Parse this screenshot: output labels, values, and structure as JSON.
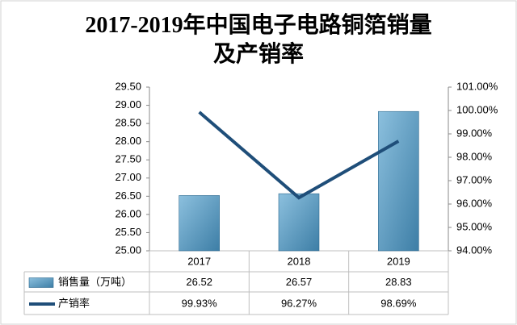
{
  "chart_data": {
    "type": "bar-line",
    "title": "2017-2019年中国电子电路铜箔销量及产销率",
    "categories": [
      "2017",
      "2018",
      "2019"
    ],
    "series": [
      {
        "name": "销售量（万吨）",
        "type": "bar",
        "color": "#4a8fb9",
        "values": [
          26.52,
          26.57,
          28.83
        ]
      },
      {
        "name": "产销率",
        "type": "line",
        "color": "#1f4e79",
        "axis": "y2",
        "values": [
          99.93,
          96.27,
          98.69
        ],
        "value_labels": [
          "99.93%",
          "96.27%",
          "98.69%"
        ]
      }
    ],
    "ylim": [
      25,
      29.5
    ],
    "yticks": [
      {
        "value": 25,
        "label": "25.00"
      },
      {
        "value": 25.5,
        "label": "25.50"
      },
      {
        "value": 26,
        "label": "26.00"
      },
      {
        "value": 26.5,
        "label": "26.50"
      },
      {
        "value": 27,
        "label": "27.00"
      },
      {
        "value": 27.5,
        "label": "27.50"
      },
      {
        "value": 28,
        "label": "28.00"
      },
      {
        "value": 28.5,
        "label": "28.50"
      },
      {
        "value": 29,
        "label": "29.00"
      },
      {
        "value": 29.5,
        "label": "29.50"
      }
    ],
    "y2lim": [
      94,
      101
    ],
    "y2ticks": [
      {
        "value": 94,
        "label": "94.00%"
      },
      {
        "value": 95,
        "label": "95.00%"
      },
      {
        "value": 96,
        "label": "96.00%"
      },
      {
        "value": 97,
        "label": "97.00%"
      },
      {
        "value": 98,
        "label": "98.00%"
      },
      {
        "value": 99,
        "label": "99.00%"
      },
      {
        "value": 100,
        "label": "100.00%"
      },
      {
        "value": 101,
        "label": "101.00%"
      }
    ],
    "data_table": true
  }
}
